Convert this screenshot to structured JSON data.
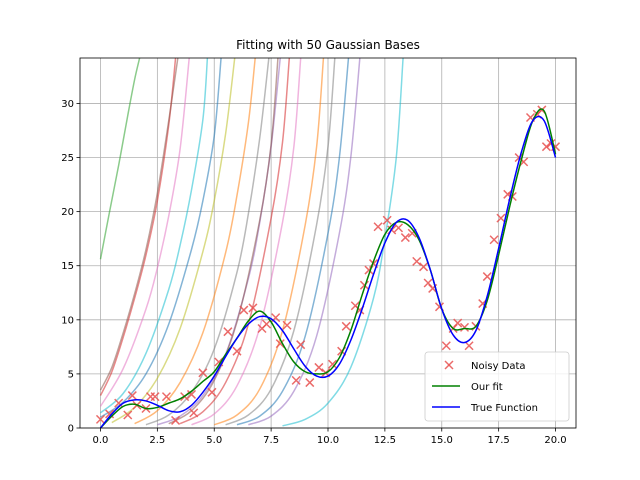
{
  "chart_data": {
    "type": "scatter",
    "title": "Fitting with 50 Gaussian Bases",
    "xlabel": "",
    "ylabel": "",
    "xlim": [
      -0.9,
      20.9
    ],
    "ylim": [
      0,
      34.2
    ],
    "x_ticks": [
      0,
      2.5,
      5,
      7.5,
      10,
      12.5,
      15,
      17.5,
      20
    ],
    "x_tick_labels": [
      "0.0",
      "2.5",
      "5.0",
      "7.5",
      "10.0",
      "12.5",
      "15.0",
      "17.5",
      "20.0"
    ],
    "y_ticks": [
      0,
      5,
      10,
      15,
      20,
      25,
      30
    ],
    "y_tick_labels": [
      "0",
      "5",
      "10",
      "15",
      "20",
      "25",
      "30"
    ],
    "grid": true,
    "legend_position": "lower-right",
    "legend": [
      {
        "label": "Noisy Data",
        "marker": "x",
        "color": "#e8504f"
      },
      {
        "label": "Our fit",
        "marker": "line",
        "color": "#008000"
      },
      {
        "label": "True Function",
        "marker": "line",
        "color": "#0000ff"
      }
    ],
    "noisy_data": {
      "color": "#e8504f",
      "x": [
        0.0,
        0.4,
        0.8,
        1.2,
        1.4,
        1.6,
        2.0,
        2.2,
        2.4,
        2.9,
        3.3,
        3.7,
        4.0,
        4.1,
        4.5,
        4.9,
        5.2,
        5.6,
        6.0,
        6.3,
        6.7,
        7.1,
        7.3,
        7.7,
        7.9,
        8.2,
        8.6,
        8.8,
        9.2,
        9.6,
        9.9,
        10.2,
        10.6,
        10.8,
        11.2,
        11.4,
        11.6,
        11.8,
        12.0,
        12.2,
        12.6,
        12.8,
        13.1,
        13.4,
        13.7,
        13.9,
        14.2,
        14.4,
        14.6,
        14.9,
        15.2,
        15.5,
        15.7,
        16.0,
        16.2,
        16.5,
        16.8,
        17.0,
        17.3,
        17.6,
        17.9,
        18.1,
        18.4,
        18.6,
        18.9,
        19.2,
        19.4,
        19.6,
        19.8,
        20.0
      ],
      "y": [
        0.8,
        1.3,
        2.3,
        1.2,
        3.0,
        2.1,
        1.8,
        2.9,
        2.9,
        2.9,
        0.7,
        2.9,
        3.1,
        1.4,
        5.1,
        3.3,
        6.1,
        8.9,
        7.1,
        10.9,
        11.1,
        9.2,
        9.6,
        10.2,
        7.8,
        9.5,
        4.4,
        7.7,
        4.2,
        5.6,
        5.1,
        5.9,
        7.1,
        9.4,
        11.3,
        10.9,
        13.2,
        14.6,
        15.2,
        18.6,
        19.2,
        18.3,
        18.5,
        17.6,
        18.0,
        15.4,
        14.9,
        13.4,
        12.9,
        11.2,
        7.6,
        9.2,
        9.7,
        9.3,
        7.6,
        9.4,
        11.5,
        14.0,
        17.4,
        19.4,
        21.6,
        21.4,
        25.0,
        24.6,
        28.7,
        29.0,
        29.4,
        26.0,
        26.3,
        26.0
      ]
    },
    "fit": {
      "name": "Our fit",
      "color": "#008000",
      "x": [
        0.0,
        0.5,
        1.0,
        1.5,
        2.0,
        2.5,
        3.0,
        3.5,
        4.0,
        4.5,
        5.0,
        5.5,
        6.0,
        6.5,
        7.0,
        7.5,
        8.0,
        8.5,
        9.0,
        9.5,
        10.0,
        10.5,
        11.0,
        11.5,
        12.0,
        12.5,
        13.0,
        13.5,
        14.0,
        14.5,
        15.0,
        15.5,
        16.0,
        16.5,
        17.0,
        17.5,
        18.0,
        18.5,
        19.0,
        19.5,
        20.0
      ],
      "y": [
        0.0,
        1.1,
        2.0,
        2.2,
        1.8,
        1.9,
        2.3,
        2.7,
        3.4,
        4.3,
        5.2,
        6.8,
        8.3,
        9.9,
        10.8,
        9.8,
        7.8,
        6.1,
        5.2,
        5.0,
        5.2,
        6.5,
        9.0,
        12.3,
        15.4,
        17.9,
        19.0,
        18.8,
        17.4,
        14.6,
        11.0,
        9.2,
        9.2,
        9.4,
        11.8,
        16.0,
        20.6,
        24.8,
        28.4,
        29.3,
        25.3
      ]
    },
    "true_function": {
      "name": "True Function",
      "color": "#0000ff",
      "x": [
        0.0,
        0.5,
        1.0,
        1.5,
        2.0,
        2.5,
        3.0,
        3.5,
        4.0,
        4.5,
        5.0,
        5.5,
        6.0,
        6.5,
        7.0,
        7.5,
        8.0,
        8.5,
        9.0,
        9.5,
        10.0,
        10.5,
        11.0,
        11.5,
        12.0,
        12.5,
        13.0,
        13.5,
        14.0,
        14.5,
        15.0,
        15.5,
        16.0,
        16.5,
        17.0,
        17.5,
        18.0,
        18.5,
        19.0,
        19.5,
        20.0
      ],
      "y": [
        0.0,
        1.3,
        2.3,
        2.6,
        2.5,
        2.1,
        1.6,
        1.5,
        2.1,
        3.3,
        4.8,
        6.6,
        8.3,
        9.6,
        10.3,
        10.1,
        9.0,
        7.3,
        5.7,
        4.8,
        4.8,
        5.9,
        8.1,
        11.0,
        14.2,
        17.1,
        19.0,
        19.2,
        17.6,
        14.6,
        11.0,
        8.6,
        7.9,
        9.0,
        12.2,
        16.6,
        21.3,
        25.5,
        28.4,
        28.4,
        25.0
      ]
    },
    "basis_curves": [
      {
        "color": "#2ca02c",
        "x": [
          0.0,
          0.4,
          0.8,
          1.2,
          1.5,
          1.72,
          1.8
        ],
        "y": [
          15.6,
          20,
          24.3,
          28.9,
          32.2,
          34.2,
          35
        ]
      },
      {
        "color": "#d62728",
        "x": [
          0.0,
          0.5,
          1.0,
          1.5,
          2.0,
          2.5,
          3.0,
          3.3
        ],
        "y": [
          3.0,
          5.2,
          8.4,
          12.0,
          16.0,
          21.0,
          28.0,
          34.2
        ]
      },
      {
        "color": "#8c564b",
        "x": [
          0.0,
          0.5,
          1.0,
          1.5,
          2.0,
          2.5,
          3.0,
          3.4
        ],
        "y": [
          3.5,
          5.6,
          8.8,
          12.4,
          16.5,
          21.7,
          28.4,
          34.2
        ]
      },
      {
        "color": "#e377c2",
        "x": [
          0.0,
          1.0,
          2.0,
          2.5,
          3.0,
          3.5,
          3.9
        ],
        "y": [
          2.0,
          5.5,
          11.0,
          14.8,
          19.6,
          25.8,
          34.2
        ]
      },
      {
        "color": "#17becf",
        "x": [
          0.0,
          1.0,
          2.0,
          3.0,
          3.5,
          4.0,
          4.5,
          4.7
        ],
        "y": [
          1.4,
          3.2,
          6.9,
          12.8,
          16.9,
          22.0,
          28.5,
          34.2
        ]
      },
      {
        "color": "#1f77b4",
        "x": [
          0.0,
          1.0,
          2.0,
          3.0,
          4.0,
          4.5,
          5.0,
          5.3
        ],
        "y": [
          1.0,
          2.4,
          5.0,
          9.6,
          16.5,
          21.0,
          27.0,
          34.2
        ]
      },
      {
        "color": "#bcbd22",
        "x": [
          0.5,
          1.5,
          2.5,
          3.5,
          4.5,
          5.0,
          5.5,
          5.9
        ],
        "y": [
          0.5,
          1.9,
          4.6,
          9.2,
          16.3,
          21.0,
          27.2,
          34.2
        ]
      },
      {
        "color": "#ff7f0e",
        "x": [
          1.5,
          2.5,
          3.5,
          4.5,
          5.5,
          6.0,
          6.5,
          6.8
        ],
        "y": [
          0.4,
          1.6,
          4.2,
          8.8,
          16.2,
          21.5,
          28.2,
          34.2
        ]
      },
      {
        "color": "#7f7f7f",
        "x": [
          2.0,
          3.0,
          4.0,
          5.0,
          6.0,
          6.5,
          7.0,
          7.4
        ],
        "y": [
          0.3,
          1.2,
          3.3,
          7.3,
          14.4,
          19.8,
          26.8,
          34.2
        ]
      },
      {
        "color": "#9467bd",
        "x": [
          2.5,
          3.5,
          4.5,
          5.5,
          6.5,
          7.0,
          7.5,
          7.9
        ],
        "y": [
          0.3,
          1.1,
          3.0,
          6.8,
          13.8,
          19.0,
          26.0,
          34.2
        ]
      },
      {
        "color": "#8c564b",
        "x": [
          3.0,
          4.0,
          5.0,
          6.0,
          7.0,
          7.5,
          7.8
        ],
        "y": [
          0.4,
          1.6,
          4.4,
          9.8,
          19.2,
          26.2,
          34.2
        ]
      },
      {
        "color": "#d62728",
        "x": [
          3.5,
          4.5,
          5.5,
          6.5,
          7.5,
          8.0,
          8.3
        ],
        "y": [
          0.4,
          1.5,
          4.2,
          9.6,
          19.4,
          26.4,
          34.2
        ]
      },
      {
        "color": "#e377c2",
        "x": [
          4.0,
          5.0,
          6.0,
          7.0,
          8.0,
          8.5,
          8.8
        ],
        "y": [
          0.3,
          1.3,
          3.9,
          9.3,
          19.0,
          26.0,
          34.2
        ]
      },
      {
        "color": "#ff7f0e",
        "x": [
          5.0,
          6.0,
          7.0,
          8.0,
          9.0,
          9.5,
          9.8
        ],
        "y": [
          0.3,
          1.2,
          3.6,
          9.0,
          18.8,
          26.0,
          34.2
        ]
      },
      {
        "color": "#7f7f7f",
        "x": [
          5.5,
          6.5,
          7.5,
          8.5,
          9.5,
          10.0,
          10.3
        ],
        "y": [
          0.3,
          1.2,
          3.6,
          9.0,
          18.8,
          26.0,
          34.2
        ]
      },
      {
        "color": "#1f77b4",
        "x": [
          6.0,
          7.0,
          8.0,
          9.0,
          10.0,
          10.5,
          10.9
        ],
        "y": [
          0.3,
          1.1,
          3.4,
          8.5,
          18.0,
          25.0,
          34.2
        ]
      },
      {
        "color": "#9467bd",
        "x": [
          6.5,
          7.5,
          8.5,
          9.5,
          10.5,
          11.0,
          11.4
        ],
        "y": [
          0.3,
          1.1,
          3.4,
          8.5,
          18.0,
          25.0,
          34.2
        ]
      },
      {
        "color": "#17becf",
        "x": [
          8.0,
          9.0,
          10.0,
          11.0,
          12.0,
          12.5,
          13.0,
          13.3
        ],
        "y": [
          0.2,
          0.8,
          2.3,
          5.6,
          12.0,
          17.5,
          25.0,
          34.2
        ]
      }
    ]
  }
}
